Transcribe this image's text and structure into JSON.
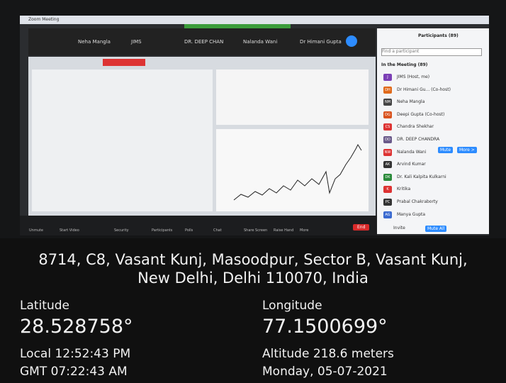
{
  "window_title": "Zoom Meeting",
  "video_strip": [
    "Neha Mangla",
    "JIMS",
    "DR. DEEP CHAN",
    "Nalanda Wani",
    "Dr Himani Gupta"
  ],
  "participants_panel": {
    "title": "Participants (89)",
    "search": "Find a participant",
    "section": "In the Meeting (89)",
    "list": [
      {
        "initials": "J",
        "name": "JIMS (Host, me)"
      },
      {
        "initials": "DH",
        "name": "Dr Himani Gu... (Co-host)"
      },
      {
        "initials": "NM",
        "name": "Neha Mangla"
      },
      {
        "initials": "DG",
        "name": "Deepi Gupta (Co-host)"
      },
      {
        "initials": "CS",
        "name": "Chandra Shekhar"
      },
      {
        "initials": "DD",
        "name": "DR. DEEP CHANDRA"
      },
      {
        "initials": "NW",
        "name": "Nalanda Wani"
      },
      {
        "initials": "AK",
        "name": "Arvind Kumar"
      },
      {
        "initials": "DK",
        "name": "Dr. Kali Kalpita Kulkarni"
      },
      {
        "initials": "K",
        "name": "Kritika"
      },
      {
        "initials": "PC",
        "name": "Prabal Chakraborty"
      },
      {
        "initials": "AG",
        "name": "Manya Gupta"
      }
    ],
    "row_buttons": [
      "Mute",
      "More >"
    ],
    "footer": [
      "Invite",
      "Mute All"
    ]
  },
  "toolbar": [
    "Unmute",
    "Start Video",
    "Security",
    "Participants",
    "Polls",
    "Chat",
    "Share Screen",
    "Raise Hand",
    "More"
  ],
  "end": "End",
  "geotag": {
    "address": [
      "8714, C8, Vasant Kunj, Masoodpur, Sector B, Vasant Kunj,",
      "New Delhi, Delhi 110070, India"
    ],
    "latitude_label": "Latitude",
    "latitude": "28.528758°",
    "longitude_label": "Longitude",
    "longitude": "77.1500699°",
    "local": "Local 12:52:43 PM",
    "gmt": "GMT 07:22:43 AM",
    "altitude": "Altitude 218.6 meters",
    "date": "Monday, 05-07-2021"
  }
}
